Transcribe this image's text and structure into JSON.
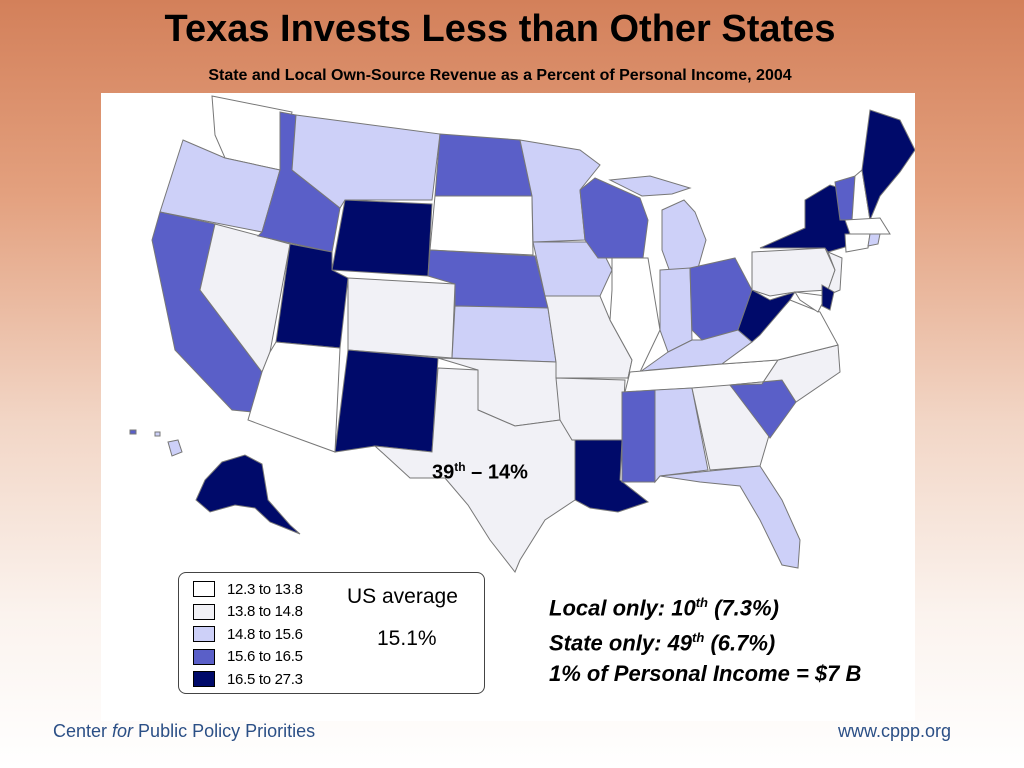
{
  "title": "Texas Invests Less than Other States",
  "subtitle": "State and Local Own-Source Revenue as a Percent of Personal Income, 2004",
  "legend": [
    {
      "label": "12.3 to 13.8",
      "color": "#ffffff"
    },
    {
      "label": "13.8 to 14.8",
      "color": "#f1f1f6"
    },
    {
      "label": "14.8 to 15.6",
      "color": "#cdd0f8"
    },
    {
      "label": "15.6 to 16.5",
      "color": "#5a5fc8"
    },
    {
      "label": "16.5 to 27.3",
      "color": "#000a6a"
    }
  ],
  "us_average": {
    "label": "US average",
    "value": "15.1%"
  },
  "texas": {
    "rank": "39",
    "suffix": "th",
    "value": "– 14%"
  },
  "notes": [
    {
      "pre": "Local only: 10",
      "sup": "th",
      "post": " (7.3%)"
    },
    {
      "pre": "State only: 49",
      "sup": "th",
      "post": " (6.7%)"
    },
    {
      "pre": "1% of Personal Income = $7 B",
      "sup": "",
      "post": ""
    }
  ],
  "footer": {
    "org_pre": "Center ",
    "org_for": "for",
    "org_post": " Public Policy Priorities",
    "url": "www.cppp.org"
  }
}
